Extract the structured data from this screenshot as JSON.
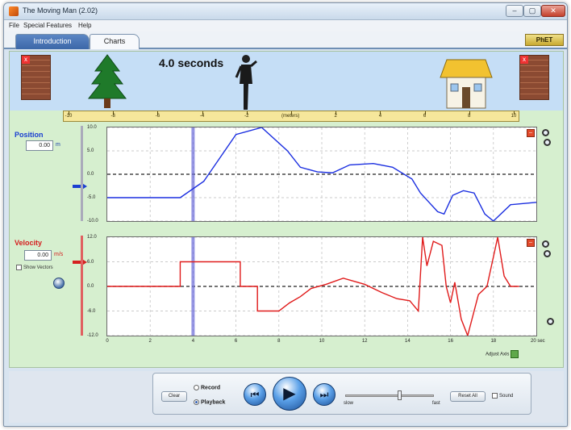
{
  "window": {
    "title": "The Moving Man (2.02)",
    "buttons": {
      "minimize": "–",
      "maximize": "▢",
      "close": "✕"
    }
  },
  "menu": {
    "file": "File",
    "special": "Special Features",
    "help": "Help"
  },
  "tabs": [
    {
      "label": "Introduction",
      "active": true
    },
    {
      "label": "Charts",
      "active": false
    }
  ],
  "logo": "PhET",
  "scene": {
    "time_readout": "4.0 seconds",
    "wall_close": "x",
    "ruler": {
      "ticks": [
        -10,
        -8,
        -6,
        -4,
        -2,
        0,
        2,
        4,
        6,
        8,
        10
      ],
      "unit": "(meters)",
      "man_position": -2
    }
  },
  "position_panel": {
    "label": "Position",
    "value": "0.00",
    "unit": "m",
    "color": "#1a3fd1"
  },
  "velocity_panel": {
    "label": "Velocity",
    "value": "0.00",
    "unit": "m/s",
    "color": "#d52020",
    "show_vectors": "Show Vectors"
  },
  "chart_data": [
    {
      "type": "line",
      "title": "",
      "xlabel": "",
      "ylabel": "",
      "yticks": [
        "10.0",
        "5.0",
        "0.0",
        "-5.0",
        "-10.0"
      ],
      "ylim": [
        -10,
        10
      ],
      "xlim": [
        0,
        20
      ],
      "playhead_x": 4,
      "grid": true,
      "series": [
        {
          "color": "#1a2ee0",
          "x": [
            0,
            3.4,
            4.5,
            6.0,
            7.2,
            8.4,
            9.0,
            9.8,
            10.5,
            11.3,
            12.4,
            13.3,
            14.2,
            14.6,
            15.0,
            15.4,
            15.7,
            16.1,
            16.6,
            17.1,
            17.6,
            18.0,
            18.8,
            20.0
          ],
          "y": [
            -5.0,
            -5.0,
            -1.5,
            8.5,
            10.0,
            5.0,
            1.5,
            0.5,
            0.3,
            2.0,
            2.3,
            1.5,
            -1.0,
            -4.0,
            -6.0,
            -8.0,
            -8.5,
            -4.5,
            -3.5,
            -4.0,
            -8.5,
            -10.0,
            -6.5,
            -6.0
          ]
        }
      ]
    },
    {
      "type": "line",
      "title": "",
      "xlabel": "",
      "ylabel": "",
      "yticks": [
        "12.0",
        "6.0",
        "0.0",
        "-6.0",
        "-12.0"
      ],
      "xticks": [
        0,
        2,
        4,
        6,
        8,
        10,
        12,
        14,
        16,
        18
      ],
      "x_unit": "20 sec",
      "ylim": [
        -12,
        12
      ],
      "xlim": [
        0,
        20
      ],
      "playhead_x": 4,
      "grid": true,
      "series": [
        {
          "color": "#e01a1a",
          "x": [
            0,
            3.4,
            3.4,
            6.2,
            6.2,
            7.0,
            7.0,
            8.0,
            8.5,
            9.0,
            9.5,
            10.2,
            11.0,
            12.0,
            12.8,
            13.5,
            14.1,
            14.5,
            14.7,
            14.9,
            15.2,
            15.6,
            15.8,
            16.0,
            16.2,
            16.5,
            16.8,
            17.3,
            17.7,
            18.2,
            18.5,
            18.8,
            19.2
          ],
          "y": [
            0,
            0,
            6.0,
            6.0,
            0,
            0,
            -6.0,
            -6.0,
            -4.0,
            -2.5,
            -0.5,
            0.5,
            2.0,
            0.5,
            -1.5,
            -3.0,
            -3.5,
            -6.0,
            12.0,
            5.0,
            11.0,
            10.0,
            0,
            -4.0,
            1.0,
            -8.0,
            -12.0,
            -2.0,
            0,
            12.0,
            2.5,
            0,
            0
          ]
        }
      ]
    }
  ],
  "adjust_label": "Adjust Axis",
  "controls": {
    "clear": "Clear",
    "record": "Record",
    "playback": "Playback",
    "mode": "playback",
    "rewind_glyph": "⏮",
    "play_glyph": "▶",
    "step_glyph": "⏭",
    "slow": "slow",
    "fast": "fast",
    "playback_speed": 0.6,
    "reset_all": "Reset All",
    "sound": "Sound"
  }
}
